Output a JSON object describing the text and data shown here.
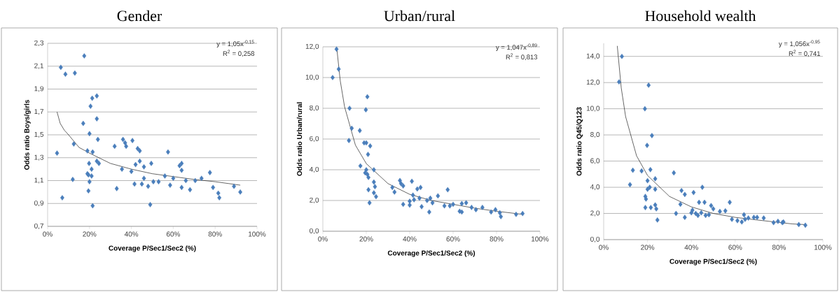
{
  "chart_data": [
    {
      "type": "scatter",
      "title": "Gender",
      "xlabel": "Coverage P/Sec1/Sec2 (%)",
      "ylabel": "Odds ratio Boys/girls",
      "grid": "y",
      "xlim": [
        0,
        1
      ],
      "xticks": [
        {
          "value": 0,
          "label": "0%"
        },
        {
          "value": 0.2,
          "label": "20%"
        },
        {
          "value": 0.4,
          "label": "40%"
        },
        {
          "value": 0.6,
          "label": "60%"
        },
        {
          "value": 0.8,
          "label": "80%"
        },
        {
          "value": 1,
          "label": "100%"
        }
      ],
      "ylim": [
        0.7,
        2.3
      ],
      "yticks": [
        {
          "value": 0.7,
          "label": "0,7"
        },
        {
          "value": 0.9,
          "label": "0,9"
        },
        {
          "value": 1.1,
          "label": "1,1"
        },
        {
          "value": 1.3,
          "label": "1,3"
        },
        {
          "value": 1.5,
          "label": "1,5"
        },
        {
          "value": 1.7,
          "label": "1,7"
        },
        {
          "value": 1.9,
          "label": "1,9"
        },
        {
          "value": 2.1,
          "label": "2,1"
        },
        {
          "value": 2.3,
          "label": "2,3"
        }
      ],
      "annotations": [
        "y = 1,05x$^{-0,15}$",
        "R$^{2}$ = 0,258"
      ],
      "series": [
        {
          "type": "scatter",
          "color": "#4a7ebb",
          "marker": "diamond",
          "x": [
            0.045,
            0.063,
            0.07,
            0.085,
            0.12,
            0.125,
            0.13,
            0.17,
            0.175,
            0.19,
            0.19,
            0.195,
            0.195,
            0.198,
            0.2,
            0.2,
            0.205,
            0.21,
            0.21,
            0.213,
            0.215,
            0.215,
            0.235,
            0.235,
            0.235,
            0.24,
            0.245,
            0.32,
            0.33,
            0.355,
            0.36,
            0.37,
            0.375,
            0.4,
            0.405,
            0.415,
            0.42,
            0.43,
            0.44,
            0.44,
            0.45,
            0.46,
            0.46,
            0.48,
            0.49,
            0.495,
            0.505,
            0.53,
            0.56,
            0.575,
            0.585,
            0.6,
            0.63,
            0.64,
            0.64,
            0.64,
            0.66,
            0.68,
            0.705,
            0.735,
            0.775,
            0.79,
            0.815,
            0.82,
            0.89,
            0.92
          ],
          "values": [
            1.34,
            2.09,
            0.95,
            2.03,
            1.11,
            1.42,
            2.04,
            1.6,
            2.19,
            1.36,
            1.16,
            1.15,
            1.01,
            1.25,
            1.51,
            1.09,
            1.75,
            1.14,
            1.2,
            1.82,
            1.35,
            0.88,
            1.84,
            1.64,
            1.27,
            1.46,
            1.25,
            1.4,
            1.03,
            1.2,
            1.46,
            1.43,
            1.4,
            1.18,
            1.45,
            1.07,
            1.24,
            1.38,
            1.27,
            1.36,
            1.07,
            1.22,
            1.12,
            1.05,
            0.89,
            1.25,
            1.09,
            1.09,
            1.14,
            1.35,
            1.06,
            1.12,
            1.23,
            1.25,
            1.19,
            1.04,
            1.1,
            1.02,
            1.1,
            1.12,
            1.17,
            1.04,
            0.99,
            0.95,
            1.05,
            1.0
          ]
        },
        {
          "type": "line",
          "color": "#000000",
          "marker": "none",
          "x": [
            0.045,
            0.06,
            0.08,
            0.1,
            0.15,
            0.2,
            0.3,
            0.4,
            0.5,
            0.7,
            0.8,
            0.92
          ],
          "values": [
            1.7,
            1.6,
            1.54,
            1.5,
            1.39,
            1.34,
            1.25,
            1.2,
            1.16,
            1.11,
            1.09,
            1.06
          ]
        }
      ]
    },
    {
      "type": "scatter",
      "title": "Urban/rural",
      "xlabel": "Coverage P/Sec1/Sec2 (%)",
      "ylabel": "Odds ratio Urban/rural",
      "grid": "y",
      "xlim": [
        0,
        1
      ],
      "xticks": [
        {
          "value": 0,
          "label": "0%"
        },
        {
          "value": 0.2,
          "label": "20%"
        },
        {
          "value": 0.4,
          "label": "40%"
        },
        {
          "value": 0.6,
          "label": "60%"
        },
        {
          "value": 0.8,
          "label": "80%"
        },
        {
          "value": 1,
          "label": "100%"
        }
      ],
      "ylim": [
        0,
        12
      ],
      "yticks": [
        {
          "value": 0,
          "label": "0,0"
        },
        {
          "value": 2,
          "label": "2,0"
        },
        {
          "value": 4,
          "label": "4,0"
        },
        {
          "value": 6,
          "label": "6,0"
        },
        {
          "value": 8,
          "label": "8,0"
        },
        {
          "value": 10,
          "label": "10,0"
        },
        {
          "value": 12,
          "label": "12,0"
        }
      ],
      "annotations": [
        "y = 1,047x$^{-0,89}$",
        "R$^{2}$ = 0,813"
      ],
      "series": [
        {
          "type": "scatter",
          "color": "#4a7ebb",
          "marker": "diamond",
          "x": [
            0.045,
            0.063,
            0.073,
            0.12,
            0.123,
            0.133,
            0.17,
            0.173,
            0.19,
            0.195,
            0.198,
            0.2,
            0.2,
            0.205,
            0.205,
            0.208,
            0.21,
            0.21,
            0.215,
            0.218,
            0.235,
            0.235,
            0.235,
            0.24,
            0.245,
            0.32,
            0.33,
            0.355,
            0.36,
            0.37,
            0.37,
            0.4,
            0.4,
            0.41,
            0.415,
            0.42,
            0.435,
            0.445,
            0.45,
            0.455,
            0.48,
            0.49,
            0.495,
            0.505,
            0.53,
            0.56,
            0.575,
            0.585,
            0.6,
            0.63,
            0.64,
            0.64,
            0.66,
            0.685,
            0.705,
            0.735,
            0.775,
            0.795,
            0.815,
            0.82,
            0.89,
            0.92
          ],
          "values": [
            10.0,
            11.85,
            10.55,
            5.9,
            8.0,
            6.7,
            6.55,
            4.25,
            5.75,
            3.8,
            7.9,
            4.0,
            5.75,
            3.7,
            8.75,
            5.0,
            3.5,
            2.7,
            1.85,
            5.55,
            4.0,
            3.2,
            2.5,
            2.9,
            2.25,
            2.85,
            2.55,
            3.3,
            3.1,
            2.95,
            1.75,
            1.95,
            1.7,
            3.25,
            2.35,
            2.05,
            2.75,
            2.15,
            2.85,
            1.6,
            2.0,
            1.25,
            2.15,
            1.85,
            2.3,
            1.65,
            2.7,
            1.65,
            1.75,
            1.3,
            1.8,
            1.25,
            1.85,
            1.55,
            1.4,
            1.55,
            1.25,
            1.4,
            1.2,
            0.95,
            1.1,
            1.15
          ]
        },
        {
          "type": "line",
          "color": "#000000",
          "marker": "none",
          "x": [
            0.065,
            0.08,
            0.1,
            0.15,
            0.2,
            0.3,
            0.4,
            0.5,
            0.7,
            0.8,
            0.92
          ],
          "values": [
            11.8,
            9.8,
            8.1,
            5.6,
            4.4,
            3.1,
            2.4,
            2.0,
            1.5,
            1.3,
            1.1
          ]
        }
      ]
    },
    {
      "type": "scatter",
      "title": "Household wealth",
      "xlabel": "Coverage P/Sec1/Sec2 (%)",
      "ylabel": "Odds ratio Q45/Q123",
      "grid": "y",
      "xlim": [
        0,
        1
      ],
      "xticks": [
        {
          "value": 0,
          "label": "0%"
        },
        {
          "value": 0.2,
          "label": "20%"
        },
        {
          "value": 0.4,
          "label": "40%"
        },
        {
          "value": 0.6,
          "label": "60%"
        },
        {
          "value": 0.8,
          "label": "80%"
        },
        {
          "value": 1,
          "label": "100%"
        }
      ],
      "ylim": [
        0,
        15
      ],
      "yticks": [
        {
          "value": 0,
          "label": "0,0"
        },
        {
          "value": 2,
          "label": "2,0"
        },
        {
          "value": 4,
          "label": "4,0"
        },
        {
          "value": 6,
          "label": "6,0"
        },
        {
          "value": 8,
          "label": "8,0"
        },
        {
          "value": 10,
          "label": "10,0"
        },
        {
          "value": 12,
          "label": "12,0"
        },
        {
          "value": 14,
          "label": "14,0"
        }
      ],
      "annotations": [
        "y = 1,056x$^{-0,95}$",
        "R$^{2}$ = 0,741"
      ],
      "series": [
        {
          "type": "scatter",
          "color": "#4a7ebb",
          "marker": "diamond",
          "x": [
            0.07,
            0.083,
            0.12,
            0.133,
            0.173,
            0.188,
            0.19,
            0.19,
            0.193,
            0.198,
            0.2,
            0.2,
            0.205,
            0.21,
            0.213,
            0.215,
            0.22,
            0.235,
            0.235,
            0.235,
            0.24,
            0.245,
            0.32,
            0.33,
            0.35,
            0.355,
            0.37,
            0.37,
            0.4,
            0.405,
            0.41,
            0.42,
            0.43,
            0.435,
            0.445,
            0.45,
            0.46,
            0.465,
            0.48,
            0.49,
            0.5,
            0.53,
            0.555,
            0.575,
            0.585,
            0.61,
            0.63,
            0.64,
            0.645,
            0.66,
            0.685,
            0.7,
            0.73,
            0.775,
            0.795,
            0.815,
            0.82,
            0.89,
            0.92
          ],
          "values": [
            12.05,
            14.0,
            4.2,
            5.3,
            5.25,
            10.0,
            2.45,
            3.3,
            3.1,
            7.2,
            4.5,
            3.85,
            11.8,
            4.0,
            5.35,
            2.45,
            7.95,
            4.65,
            3.85,
            2.65,
            2.35,
            1.5,
            5.1,
            2.0,
            2.7,
            3.75,
            3.45,
            1.7,
            2.05,
            2.25,
            3.6,
            2.0,
            1.85,
            2.85,
            2.05,
            4.0,
            2.85,
            1.85,
            1.9,
            2.6,
            2.35,
            2.15,
            2.2,
            2.85,
            1.55,
            1.45,
            1.35,
            1.9,
            1.55,
            1.65,
            1.7,
            1.7,
            1.65,
            1.3,
            1.4,
            1.3,
            1.35,
            1.15,
            1.1
          ]
        },
        {
          "type": "line",
          "color": "#000000",
          "marker": "none",
          "x": [
            0.062,
            0.08,
            0.1,
            0.15,
            0.2,
            0.3,
            0.4,
            0.5,
            0.6,
            0.7,
            0.86,
            0.92
          ],
          "values": [
            14.8,
            11.6,
            9.4,
            6.4,
            4.9,
            3.3,
            2.5,
            2.0,
            1.7,
            1.5,
            1.2,
            1.15
          ]
        }
      ]
    }
  ]
}
